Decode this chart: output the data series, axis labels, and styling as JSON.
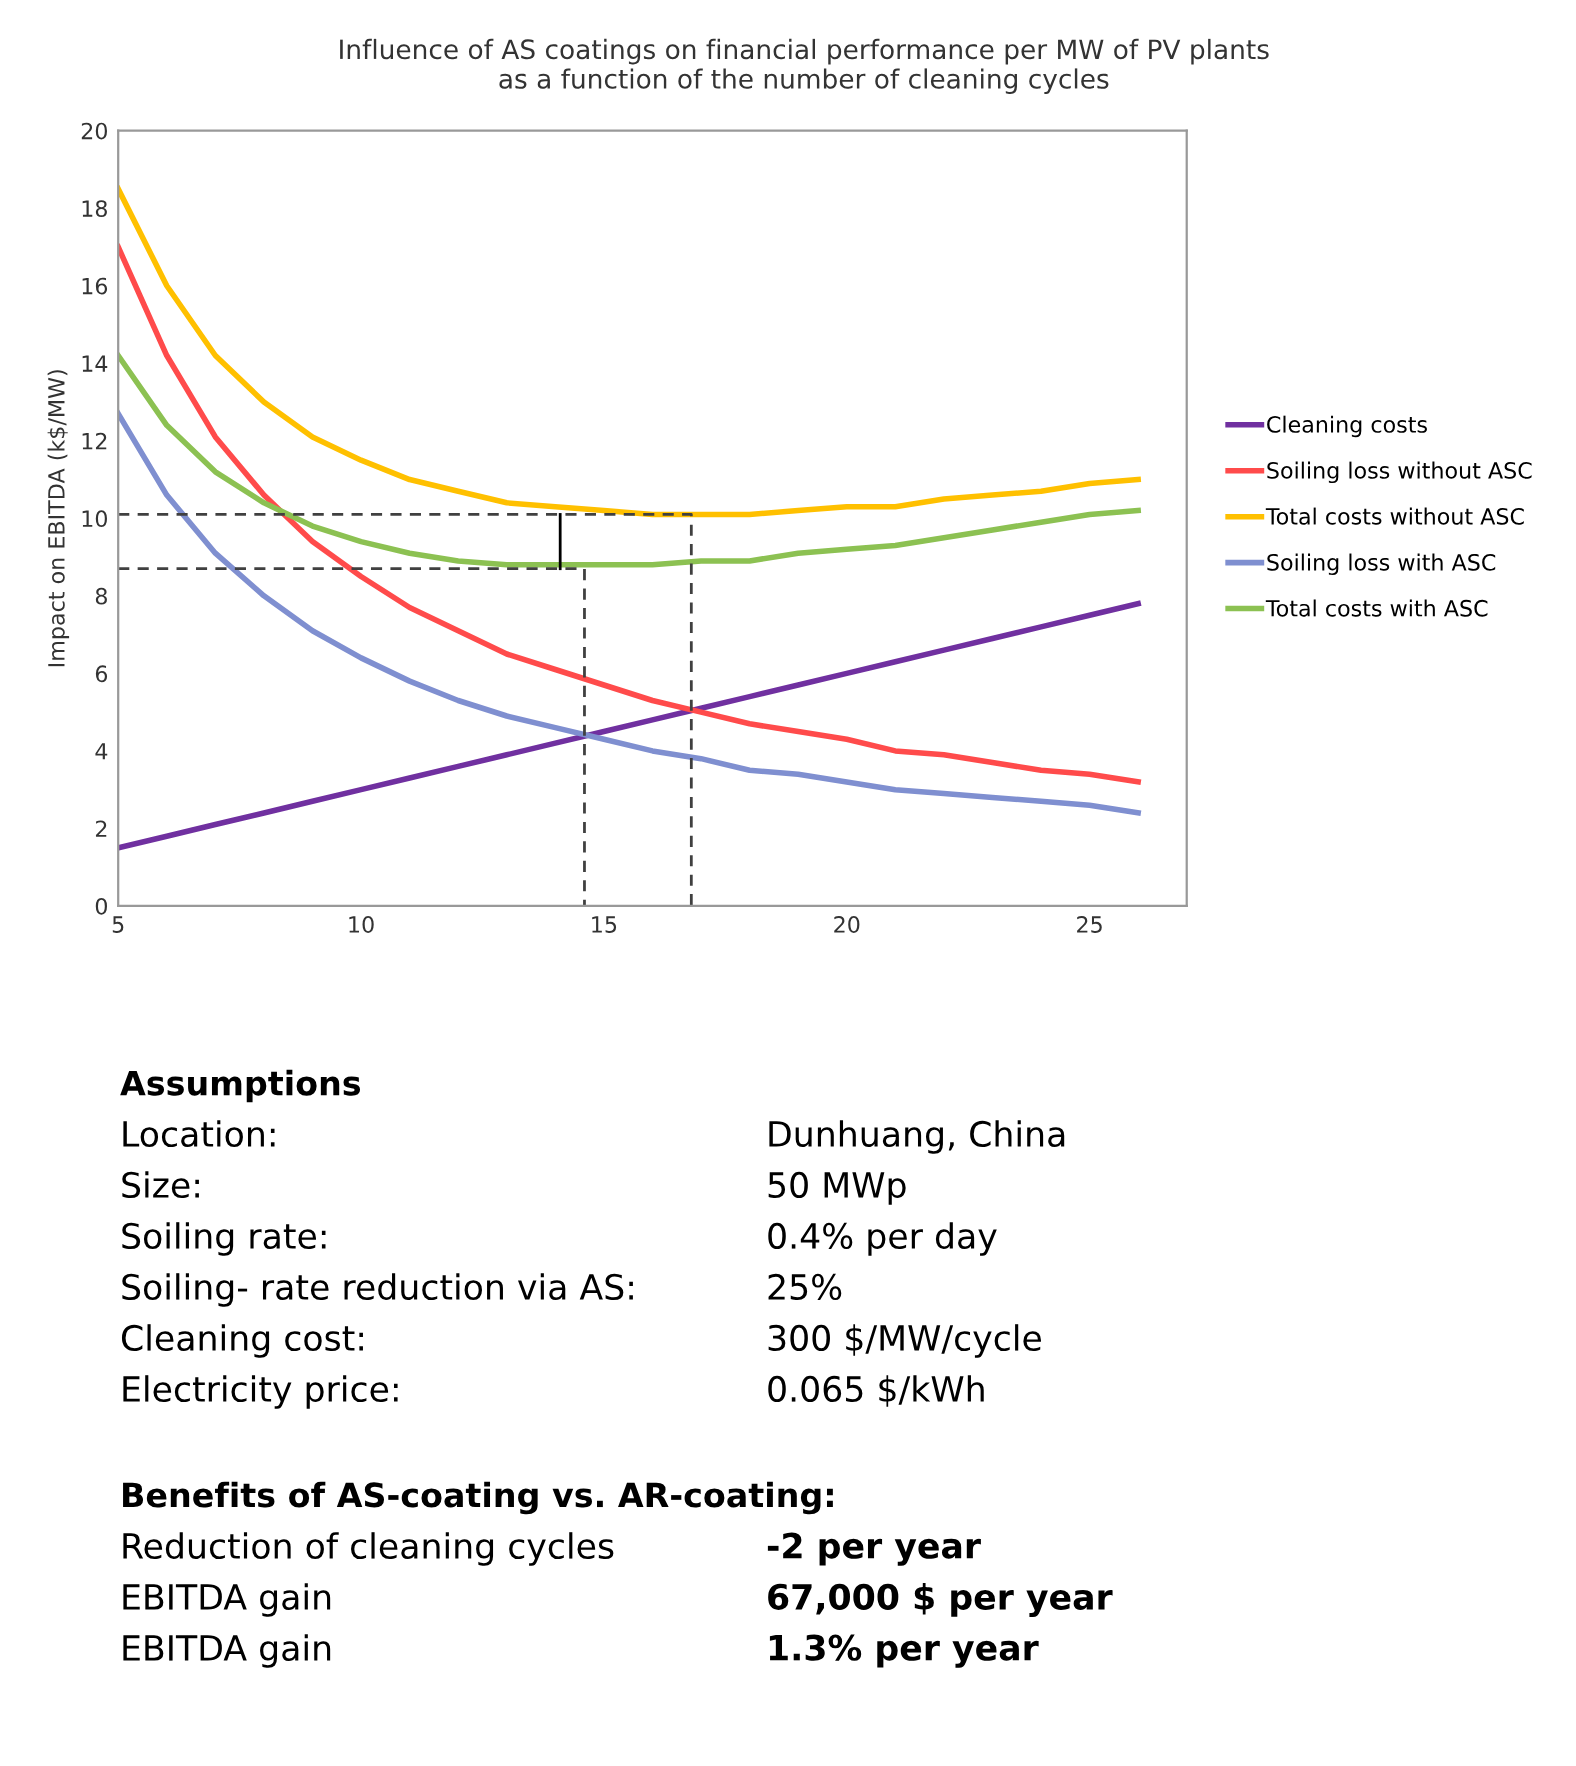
{
  "chart_data": {
    "type": "line",
    "title": "Influence of AS coatings on financial performance per MW of PV plants\nas a function of the number of cleaning cycles",
    "ylabel": "Impact on EBITDA (k$/MW)",
    "x": [
      5,
      6,
      7,
      8,
      9,
      10,
      11,
      12,
      13,
      14,
      15,
      16,
      17,
      18,
      19,
      20,
      21,
      22,
      23,
      24,
      25,
      26
    ],
    "series": [
      {
        "name": "Cleaning costs",
        "color": "#7030a0",
        "values": [
          1.5,
          1.8,
          2.1,
          2.4,
          2.7,
          3.0,
          3.3,
          3.6,
          3.9,
          4.2,
          4.5,
          4.8,
          5.1,
          5.4,
          5.7,
          6.0,
          6.3,
          6.6,
          6.9,
          7.2,
          7.5,
          7.8
        ]
      },
      {
        "name": "Soiling loss without ASC",
        "color": "#ff4b4b",
        "values": [
          17.0,
          14.2,
          12.1,
          10.6,
          9.4,
          8.5,
          7.7,
          7.1,
          6.5,
          6.1,
          5.7,
          5.3,
          5.0,
          4.7,
          4.5,
          4.3,
          4.0,
          3.9,
          3.7,
          3.5,
          3.4,
          3.2
        ]
      },
      {
        "name": "Total costs without ASC",
        "color": "#ffc000",
        "values": [
          18.5,
          16.0,
          14.2,
          13.0,
          12.1,
          11.5,
          11.0,
          10.7,
          10.4,
          10.3,
          10.2,
          10.1,
          10.1,
          10.1,
          10.2,
          10.3,
          10.3,
          10.5,
          10.6,
          10.7,
          10.9,
          11.0
        ]
      },
      {
        "name": "Soiling loss with ASC",
        "color": "#7f8fd0",
        "values": [
          12.7,
          10.6,
          9.1,
          8.0,
          7.1,
          6.4,
          5.8,
          5.3,
          4.9,
          4.6,
          4.3,
          4.0,
          3.8,
          3.5,
          3.4,
          3.2,
          3.0,
          2.9,
          2.8,
          2.7,
          2.6,
          2.4
        ]
      },
      {
        "name": "Total costs with ASC",
        "color": "#8cc152",
        "values": [
          14.2,
          12.4,
          11.2,
          10.4,
          9.8,
          9.4,
          9.1,
          8.9,
          8.8,
          8.8,
          8.8,
          8.8,
          8.9,
          8.9,
          9.1,
          9.2,
          9.3,
          9.5,
          9.7,
          9.9,
          10.1,
          10.2
        ]
      },
      {
        "color": "#404040",
        "line_style": "dashed",
        "x": [
          5,
          16.8,
          16.8
        ],
        "values": [
          10.1,
          10.1,
          0
        ]
      },
      {
        "color": "#404040",
        "line_style": "dashed",
        "x": [
          5,
          14.6,
          14.6
        ],
        "values": [
          8.7,
          8.7,
          0
        ]
      },
      {
        "color": "#000000",
        "line_style": "solid",
        "x": [
          14.1,
          14.1
        ],
        "values": [
          8.7,
          10.1
        ]
      }
    ],
    "xlim": [
      5,
      27
    ],
    "ylim": [
      0,
      20
    ],
    "xticks": [
      5,
      10,
      15,
      20,
      25
    ],
    "yticks": [
      0,
      2,
      4,
      6,
      8,
      10,
      12,
      14,
      16,
      18,
      20
    ],
    "grid": false,
    "legend": "right",
    "marker": "none",
    "annotations": [
      "Assumptions",
      "Location:",
      "Dunhuang, China",
      "Size:",
      "50 MWp",
      "Soiling rate:",
      "0.4% per day",
      "Soiling- rate reduction via AS:",
      "25%",
      "Cleaning cost:",
      "300 $/MW/cycle",
      "Electricity price:",
      "0.065 $/kWh",
      "Benefits of AS-coating vs. AR-coating:",
      "Reduction of cleaning cycles",
      "-2 per year",
      "EBITDA gain",
      "67,000 $ per year",
      "EBITDA gain",
      "1.3% per year"
    ]
  }
}
